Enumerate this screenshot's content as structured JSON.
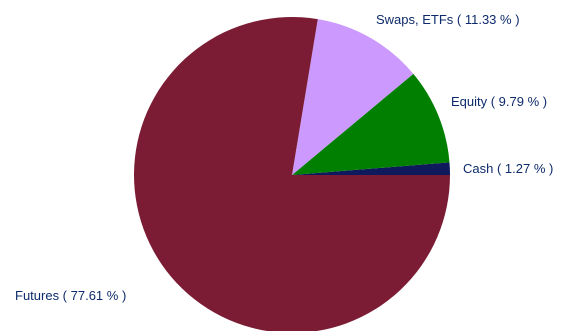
{
  "chart_data": {
    "type": "pie",
    "title": "",
    "slices": [
      {
        "category": "Cash",
        "value": 1.27,
        "label": "Cash  ( 1.27 % )",
        "color": "#0e1a5c"
      },
      {
        "category": "Equity",
        "value": 9.79,
        "label": "Equity  ( 9.79 % )",
        "color": "#007f00"
      },
      {
        "category": "Swaps, ETFs",
        "value": 11.33,
        "label": "Swaps, ETFs  ( 11.33 % )",
        "color": "#cc99ff"
      },
      {
        "category": "Futures",
        "value": 77.61,
        "label": "Futures  ( 77.61 % )",
        "color": "#7b1c34"
      }
    ],
    "label_color": "#0d2b6b",
    "direction": "counterclockwise",
    "start": "3 o'clock"
  }
}
